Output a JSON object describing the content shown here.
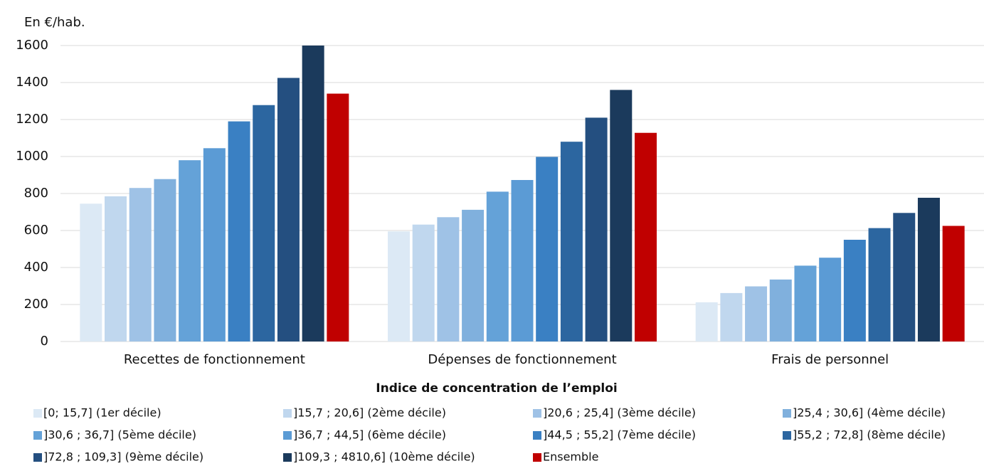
{
  "chart_data": {
    "type": "bar",
    "y_label": "En €/hab.",
    "x_label": "Indice de concentration de l’emploi",
    "categories": [
      "Recettes de fonctionnement",
      "Dépenses de fonctionnement",
      "Frais de personnel"
    ],
    "ylim": [
      0,
      1600
    ],
    "yticks": [
      0,
      200,
      400,
      600,
      800,
      1000,
      1200,
      1400,
      1600
    ],
    "grid": true,
    "legend": "bottom",
    "series": [
      {
        "name": "[0; 15,7] (1er décile)",
        "color": "#dce9f5",
        "values": [
          745,
          595,
          212
        ]
      },
      {
        "name": "]15,7 ; 20,6] (2ème décile)",
        "color": "#c0d7ee",
        "values": [
          785,
          632,
          262
        ]
      },
      {
        "name": "]20,6 ; 25,4] (3ème décile)",
        "color": "#9fc2e6",
        "values": [
          830,
          672,
          298
        ]
      },
      {
        "name": "]25,4 ; 30,6] (4ème décile)",
        "color": "#80b0dd",
        "values": [
          878,
          712,
          335
        ]
      },
      {
        "name": "]30,6 ; 36,7] (5ème décile)",
        "color": "#64a2d8",
        "values": [
          980,
          810,
          410
        ]
      },
      {
        "name": "]36,7 ; 44,5] (6ème décile)",
        "color": "#5b9bd5",
        "values": [
          1045,
          873,
          453
        ]
      },
      {
        "name": "]44,5 ; 55,2] (7ème décile)",
        "color": "#3a80c3",
        "values": [
          1190,
          998,
          550
        ]
      },
      {
        "name": "]55,2 ; 72,8] (8ème décile)",
        "color": "#2c66a0",
        "values": [
          1278,
          1080,
          613
        ]
      },
      {
        "name": "]72,8 ; 109,3] (9ème décile)",
        "color": "#244f80",
        "values": [
          1425,
          1210,
          695
        ]
      },
      {
        "name": "]109,3 ; 4810,6] (10ème décile)",
        "color": "#1b3a5c",
        "values": [
          1600,
          1360,
          777
        ]
      },
      {
        "name": "Ensemble",
        "color": "#c00000",
        "values": [
          1340,
          1128,
          625
        ]
      }
    ]
  }
}
